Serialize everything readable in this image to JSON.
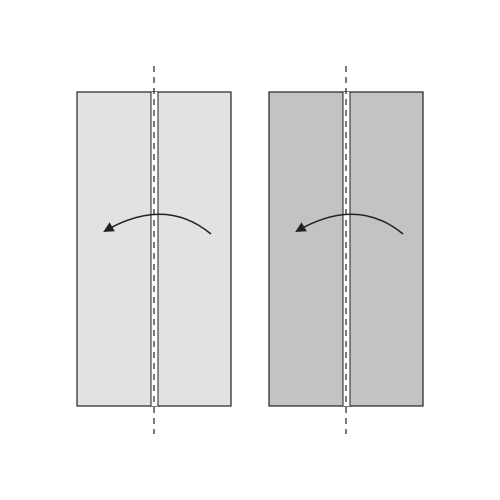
{
  "diagram": {
    "description_free": true,
    "panels": [
      {
        "id": "panel-left",
        "fill": "#e2e2e2",
        "stroke": "#222222",
        "fold_line": "dashed",
        "fold_direction": "right-to-left"
      },
      {
        "id": "panel-right",
        "fill": "#c4c3c4",
        "stroke": "#222222",
        "fold_line": "dashed",
        "fold_direction": "right-to-left"
      }
    ],
    "colors": {
      "background": "#ffffff",
      "line": "#222222",
      "crease_gap": "#ffffff"
    }
  }
}
